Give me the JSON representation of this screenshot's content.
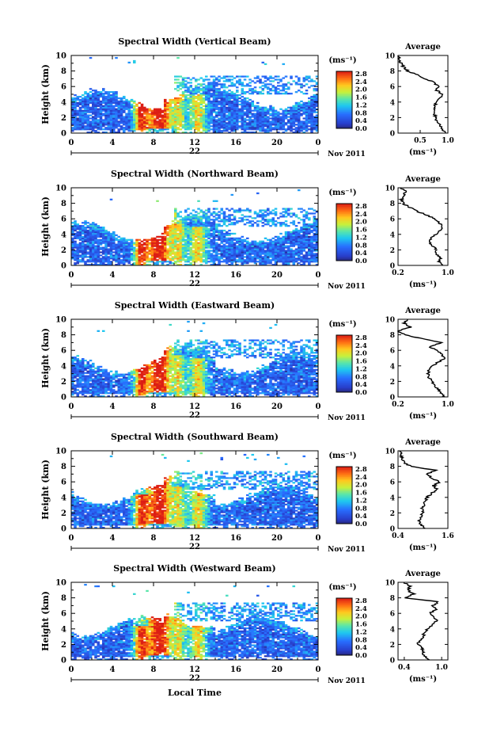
{
  "figure": {
    "bottom_xlabel": "Local Time"
  },
  "chart_data": [
    {
      "type": "heatmap",
      "title": "Spectral Width (Vertical Beam)",
      "xlabel": "",
      "ylabel": "Height (km)",
      "xlim": [
        0,
        24
      ],
      "ylim": [
        0,
        10
      ],
      "xticks": [
        "0",
        "4",
        "8",
        "12",
        "16",
        "20",
        "0"
      ],
      "yticks": [
        "0",
        "2",
        "4",
        "6",
        "8",
        "10"
      ],
      "date_label": "22",
      "month_label": "Nov 2011",
      "colorbar": {
        "unit": "(ms⁻¹)",
        "ticks": [
          "0.0",
          "0.4",
          "0.8",
          "1.2",
          "1.6",
          "2.0",
          "2.4",
          "2.8"
        ]
      },
      "profile": {
        "title": "Average",
        "xlabel": "(ms⁻¹)",
        "xlim": [
          0.1,
          1.0
        ],
        "xticks": [
          "0.5",
          "1.0"
        ],
        "y": [
          0,
          0.5,
          1,
          1.5,
          2,
          2.5,
          3,
          3.5,
          4,
          4.5,
          5,
          5.5,
          6,
          6.5,
          7,
          7.5,
          8,
          8.5,
          9,
          9.5,
          10
        ],
        "x": [
          0.95,
          0.9,
          0.86,
          0.8,
          0.78,
          0.75,
          0.74,
          0.76,
          0.8,
          0.85,
          0.9,
          0.8,
          0.82,
          0.75,
          0.6,
          0.45,
          0.28,
          0.2,
          0.15,
          0.12,
          0.1
        ]
      }
    },
    {
      "type": "heatmap",
      "title": "Spectral Width (Northward Beam)",
      "xlabel": "",
      "ylabel": "Height (km)",
      "xlim": [
        0,
        24
      ],
      "ylim": [
        0,
        10
      ],
      "xticks": [
        "0",
        "4",
        "8",
        "12",
        "16",
        "20",
        "0"
      ],
      "yticks": [
        "0",
        "2",
        "4",
        "6",
        "8",
        "10"
      ],
      "date_label": "22",
      "month_label": "Nov 2011",
      "colorbar": {
        "unit": "(ms⁻¹)",
        "ticks": [
          "0.0",
          "0.4",
          "0.8",
          "1.2",
          "1.6",
          "2.0",
          "2.4",
          "2.8"
        ]
      },
      "profile": {
        "title": "Average",
        "xlabel": "(ms⁻¹)",
        "xlim": [
          0.2,
          1.0
        ],
        "xticks": [
          "0.2",
          "1.0"
        ],
        "y": [
          0,
          0.5,
          1,
          1.5,
          2,
          2.5,
          3,
          3.5,
          4,
          4.5,
          5,
          5.5,
          6,
          6.5,
          7,
          7.5,
          8,
          8.5,
          9,
          9.5,
          10
        ],
        "x": [
          0.9,
          0.85,
          0.88,
          0.8,
          0.82,
          0.75,
          0.7,
          0.72,
          0.8,
          0.88,
          0.92,
          0.85,
          0.8,
          0.65,
          0.5,
          0.38,
          0.28,
          0.25,
          0.3,
          0.32,
          0.25
        ]
      }
    },
    {
      "type": "heatmap",
      "title": "Spectral Width (Eastward Beam)",
      "xlabel": "",
      "ylabel": "Height (km)",
      "xlim": [
        0,
        24
      ],
      "ylim": [
        0,
        10
      ],
      "xticks": [
        "0",
        "4",
        "8",
        "12",
        "16",
        "20",
        "0"
      ],
      "yticks": [
        "0",
        "2",
        "4",
        "6",
        "8",
        "10"
      ],
      "date_label": "22",
      "month_label": "Nov 2011",
      "colorbar": {
        "unit": "(ms⁻¹)",
        "ticks": [
          "0.0",
          "0.4",
          "0.8",
          "1.2",
          "1.6",
          "2.0",
          "2.4",
          "2.8"
        ]
      },
      "profile": {
        "title": "Average",
        "xlabel": "(ms⁻¹)",
        "xlim": [
          0.2,
          1.0
        ],
        "xticks": [
          "0.2",
          "1.0"
        ],
        "y": [
          0,
          0.5,
          1,
          1.5,
          2,
          2.5,
          3,
          3.5,
          4,
          4.5,
          5,
          5.5,
          6,
          6.5,
          7,
          7.5,
          8,
          8.5,
          9,
          9.5,
          10
        ],
        "x": [
          0.95,
          0.9,
          0.85,
          0.78,
          0.75,
          0.7,
          0.68,
          0.7,
          0.75,
          0.85,
          0.95,
          0.9,
          0.82,
          0.7,
          0.9,
          0.6,
          0.3,
          0.2,
          0.4,
          0.3,
          0.35
        ]
      }
    },
    {
      "type": "heatmap",
      "title": "Spectral Width (Southward Beam)",
      "xlabel": "",
      "ylabel": "Height (km)",
      "xlim": [
        0,
        24
      ],
      "ylim": [
        0,
        10
      ],
      "xticks": [
        "0",
        "4",
        "8",
        "12",
        "16",
        "20",
        "0"
      ],
      "yticks": [
        "0",
        "2",
        "4",
        "6",
        "8",
        "10"
      ],
      "date_label": "22",
      "month_label": "Nov 2011",
      "colorbar": {
        "unit": "(ms⁻¹)",
        "ticks": [
          "0.0",
          "0.4",
          "0.8",
          "1.2",
          "1.6",
          "2.0",
          "2.4",
          "2.8"
        ]
      },
      "profile": {
        "title": "Average",
        "xlabel": "(ms⁻¹)",
        "xlim": [
          0.4,
          1.6
        ],
        "xticks": [
          "0.4",
          "1.6"
        ],
        "y": [
          0,
          0.5,
          1,
          1.5,
          2,
          2.5,
          3,
          3.5,
          4,
          4.5,
          5,
          5.5,
          6,
          6.5,
          7,
          7.5,
          8,
          8.5,
          9,
          9.5,
          10
        ],
        "x": [
          1.05,
          0.95,
          0.92,
          0.95,
          1.0,
          0.98,
          1.02,
          1.05,
          1.1,
          1.2,
          1.35,
          1.25,
          1.4,
          1.2,
          1.1,
          1.3,
          0.7,
          0.55,
          0.5,
          0.48,
          0.45
        ]
      }
    },
    {
      "type": "heatmap",
      "title": "Spectral Width (Westward Beam)",
      "xlabel": "",
      "ylabel": "Height (km)",
      "xlim": [
        0,
        24
      ],
      "ylim": [
        0,
        10
      ],
      "xticks": [
        "0",
        "4",
        "8",
        "12",
        "16",
        "20",
        "0"
      ],
      "yticks": [
        "0",
        "2",
        "4",
        "6",
        "8",
        "10"
      ],
      "date_label": "22",
      "month_label": "Nov 2011",
      "colorbar": {
        "unit": "(ms⁻¹)",
        "ticks": [
          "0.0",
          "0.4",
          "0.8",
          "1.2",
          "1.6",
          "2.0",
          "2.4",
          "2.8"
        ]
      },
      "profile": {
        "title": "Average",
        "xlabel": "(ms⁻¹)",
        "xlim": [
          0.3,
          1.1
        ],
        "xticks": [
          "0.4",
          "1.0"
        ],
        "y": [
          0,
          0.5,
          1,
          1.5,
          2,
          2.5,
          3,
          3.5,
          4,
          4.5,
          5,
          5.5,
          6,
          6.5,
          7,
          7.5,
          8,
          8.5,
          9,
          9.5,
          10
        ],
        "x": [
          0.8,
          0.72,
          0.7,
          0.68,
          0.62,
          0.65,
          0.7,
          0.72,
          0.78,
          0.85,
          0.92,
          0.88,
          0.82,
          0.9,
          0.86,
          0.95,
          0.4,
          0.55,
          0.45,
          0.5,
          0.4
        ]
      }
    }
  ]
}
